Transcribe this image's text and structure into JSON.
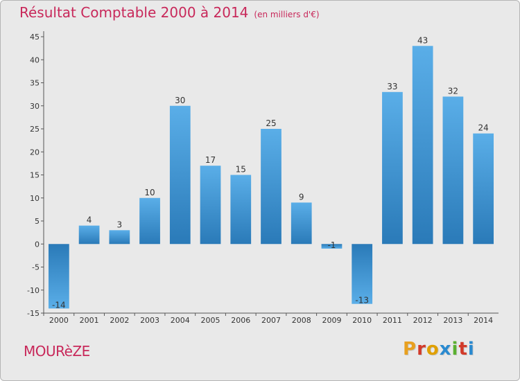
{
  "header": {
    "title": "Résultat Comptable 2000 à 2014",
    "unit": "(en milliers d'€)"
  },
  "footer": {
    "town": "MOURèZE",
    "logo": "Proxiti"
  },
  "colors": {
    "accent": "#c8285a",
    "bar_top": "#5aaee8",
    "bar_bottom": "#2a7ab8",
    "background": "#e9e9e9"
  },
  "chart_data": {
    "type": "bar",
    "title": "Résultat Comptable 2000 à 2014",
    "subtitle": "(en milliers d'€)",
    "xlabel": "",
    "ylabel": "",
    "categories": [
      "2000",
      "2001",
      "2002",
      "2003",
      "2004",
      "2005",
      "2006",
      "2007",
      "2008",
      "2009",
      "2010",
      "2011",
      "2012",
      "2013",
      "2014"
    ],
    "values": [
      -14,
      4,
      3,
      10,
      30,
      17,
      15,
      25,
      9,
      -1,
      -13,
      33,
      43,
      32,
      24
    ],
    "ylim": [
      -15,
      45
    ],
    "yticks": [
      -15,
      -10,
      -5,
      0,
      5,
      10,
      15,
      20,
      25,
      30,
      35,
      40,
      45
    ],
    "grid": false,
    "legend": "none"
  }
}
